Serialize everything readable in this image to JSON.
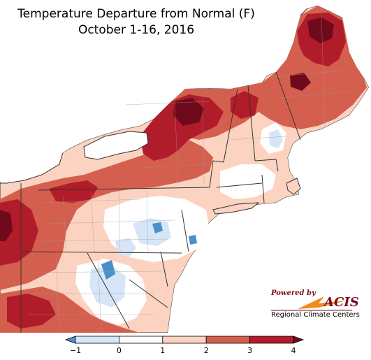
{
  "title": "Temperature Departure from Normal (F)",
  "subtitle": "October 1-16, 2016",
  "legend": {
    "ticks": [
      "−1",
      "0",
      "1",
      "2",
      "3",
      "4"
    ],
    "bins": [
      {
        "from": -1,
        "to": 0,
        "color": "#d6e6f8"
      },
      {
        "from": 0,
        "to": 1,
        "color": "#ffffff"
      },
      {
        "from": 1,
        "to": 2,
        "color": "#fbd3c0"
      },
      {
        "from": 2,
        "to": 3,
        "color": "#d45f4e"
      },
      {
        "from": 3,
        "to": 4,
        "color": "#b11c2b"
      }
    ],
    "under_color": "#4a90c8",
    "over_color": "#6e0a1c"
  },
  "logo": {
    "powered_by": "Powered by",
    "name": "ACIS",
    "org": "Regional Climate Centers"
  },
  "colors": {
    "lake": "#ffffff",
    "border": "#333333",
    "county": "#888888"
  }
}
